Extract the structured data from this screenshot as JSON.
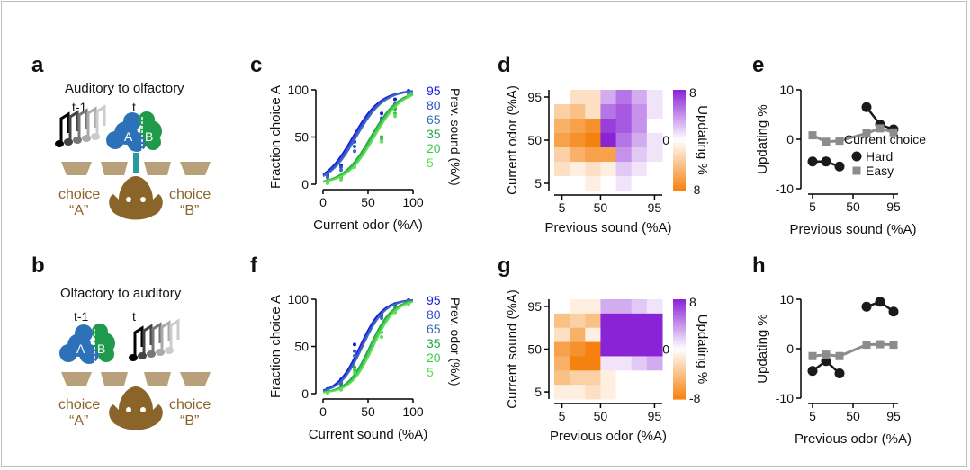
{
  "panel_labels": [
    "a",
    "b",
    "c",
    "d",
    "e",
    "f",
    "g",
    "h"
  ],
  "schematic_a": {
    "title": "Auditory to olfactory",
    "t_prev": "t-1",
    "t_curr": "t",
    "odor_a": "A",
    "odor_b": "B",
    "choice_left": "choice",
    "quote_left": "“A”",
    "choice_right": "choice",
    "quote_right": "“B”"
  },
  "schematic_b": {
    "title": "Olfactory to auditory",
    "t_prev": "t-1",
    "t_curr": "t",
    "odor_a": "A",
    "odor_b": "B",
    "choice_left": "choice",
    "quote_left": "“A”",
    "choice_right": "choice",
    "quote_right": "“B”"
  },
  "colors": {
    "blue_dark": "#1a1adb",
    "blue_mid": "#2f4fd0",
    "blue_light": "#3a6db8",
    "green_dark": "#25a64a",
    "green_mid": "#3cc84a",
    "green_light": "#5fe050",
    "odor_blue": "#2d72b8",
    "odor_green": "#1f9a4b",
    "brown": "#8a6429",
    "tan": "#b8a07a",
    "orange": "#f5820f",
    "purple": "#8a22d6",
    "hard": "#1a1a1a",
    "easy": "#8c8c8c"
  },
  "chart_data": [
    {
      "panel": "c",
      "type": "line",
      "xlabel": "Current odor (%A)",
      "ylabel": "Fraction choice A",
      "xlim": [
        0,
        100
      ],
      "ylim": [
        0,
        100
      ],
      "xticks": [
        "0",
        "50",
        "100"
      ],
      "yticks": [
        "0",
        "50",
        "100"
      ],
      "legend_title": "Prev. sound (%A)",
      "legend_labels": [
        "95",
        "80",
        "65",
        "35",
        "20",
        "5"
      ],
      "series": [
        {
          "name": "95",
          "mid": 33,
          "slope": 0.065
        },
        {
          "name": "80",
          "mid": 35,
          "slope": 0.065
        },
        {
          "name": "65",
          "mid": 37,
          "slope": 0.065
        },
        {
          "name": "35",
          "mid": 53,
          "slope": 0.065
        },
        {
          "name": "20",
          "mid": 55,
          "slope": 0.065
        },
        {
          "name": "5",
          "mid": 57,
          "slope": 0.065
        }
      ],
      "x": [
        5,
        20,
        35,
        65,
        80,
        95
      ],
      "points": [
        [
          10,
          20,
          45,
          75,
          90,
          99
        ],
        [
          8,
          18,
          40,
          70,
          85,
          98
        ],
        [
          7,
          15,
          35,
          68,
          84,
          97
        ],
        [
          3,
          8,
          22,
          50,
          80,
          95
        ],
        [
          2,
          7,
          20,
          48,
          75,
          94
        ],
        [
          1,
          5,
          18,
          45,
          72,
          93
        ]
      ]
    },
    {
      "panel": "d",
      "type": "heatmap",
      "xlabel": "Previous sound (%A)",
      "ylabel": "Current odor (%A)",
      "xticks": [
        "5",
        "50",
        "95"
      ],
      "yticks": [
        "95",
        "50",
        "5"
      ],
      "colorbar_label": "Updating %",
      "colorbar_ticks": [
        "8",
        "0",
        "-8"
      ],
      "values": [
        [
          0,
          -2,
          -2,
          3,
          5,
          3,
          1
        ],
        [
          -3,
          -4,
          -2,
          5,
          6,
          4,
          1
        ],
        [
          -5,
          -6,
          -7,
          7,
          6,
          4,
          0
        ],
        [
          -6,
          -7,
          -8,
          8,
          5,
          3,
          1
        ],
        [
          -3,
          -5,
          -6,
          -6,
          4,
          2,
          1
        ],
        [
          -2,
          -1,
          -2,
          -1,
          2,
          1,
          0
        ],
        [
          0,
          0,
          -1,
          0,
          1,
          0,
          0
        ]
      ]
    },
    {
      "panel": "e",
      "type": "line",
      "xlabel": "Previous sound (%A)",
      "ylabel": "Updating %",
      "xlim": [
        0,
        100
      ],
      "ylim": [
        -10,
        10
      ],
      "xticks": [
        "5",
        "50",
        "95"
      ],
      "yticks": [
        "10",
        "0",
        "-10"
      ],
      "legend_title": "Current choice",
      "legend_labels": [
        "Hard",
        "Easy"
      ],
      "series": [
        {
          "name": "Hard",
          "groups": [
            {
              "x": [
                5,
                20,
                35
              ],
              "y": [
                -4.5,
                -4.5,
                -5.5
              ]
            },
            {
              "x": [
                65,
                80,
                95
              ],
              "y": [
                6.5,
                3,
                2
              ]
            }
          ]
        },
        {
          "name": "Easy",
          "groups": [
            {
              "x": [
                5,
                20,
                35,
                65,
                80,
                95
              ],
              "y": [
                0.8,
                -0.5,
                -0.3,
                1.2,
                2.2,
                1.4
              ]
            }
          ]
        }
      ]
    },
    {
      "panel": "f",
      "type": "line",
      "xlabel": "Current sound (%A)",
      "ylabel": "Fraction choice A",
      "xlim": [
        0,
        100
      ],
      "ylim": [
        0,
        100
      ],
      "xticks": [
        "0",
        "50",
        "100"
      ],
      "yticks": [
        "0",
        "50",
        "100"
      ],
      "legend_title": "Prev. odor (%A)",
      "legend_labels": [
        "95",
        "80",
        "65",
        "35",
        "20",
        "5"
      ],
      "series": [
        {
          "name": "95",
          "mid": 41,
          "slope": 0.08
        },
        {
          "name": "80",
          "mid": 43,
          "slope": 0.08
        },
        {
          "name": "65",
          "mid": 44,
          "slope": 0.08
        },
        {
          "name": "35",
          "mid": 52,
          "slope": 0.08
        },
        {
          "name": "20",
          "mid": 54,
          "slope": 0.08
        },
        {
          "name": "5",
          "mid": 56,
          "slope": 0.08
        }
      ],
      "x": [
        5,
        20,
        35,
        65,
        80,
        95
      ],
      "points": [
        [
          5,
          15,
          52,
          85,
          95,
          99
        ],
        [
          4,
          12,
          45,
          82,
          94,
          98
        ],
        [
          3,
          10,
          40,
          80,
          93,
          98
        ],
        [
          2,
          6,
          28,
          70,
          90,
          97
        ],
        [
          1,
          5,
          25,
          65,
          88,
          96
        ],
        [
          1,
          4,
          22,
          60,
          86,
          95
        ]
      ]
    },
    {
      "panel": "g",
      "type": "heatmap",
      "xlabel": "Previous odor (%A)",
      "ylabel": "Current sound (%A)",
      "xticks": [
        "5",
        "50",
        "95"
      ],
      "yticks": [
        "95",
        "50",
        "5"
      ],
      "colorbar_label": "Updating %",
      "colorbar_ticks": [
        "8",
        "0",
        "-8"
      ],
      "values": [
        [
          0,
          -1,
          -1,
          3,
          3,
          2,
          1
        ],
        [
          -4,
          -3,
          -4,
          8,
          8,
          8,
          8
        ],
        [
          -2,
          -5,
          -1,
          8,
          8,
          8,
          8
        ],
        [
          -6,
          -7,
          -8,
          8,
          8,
          8,
          8
        ],
        [
          -5,
          -8,
          -8,
          1,
          1,
          2,
          3
        ],
        [
          -4,
          -3,
          -3,
          -1,
          0,
          0,
          0
        ],
        [
          -1,
          -1,
          -2,
          -1,
          0,
          0,
          0
        ]
      ]
    },
    {
      "panel": "h",
      "type": "line",
      "xlabel": "Previous odor (%A)",
      "ylabel": "Updating %",
      "xlim": [
        0,
        100
      ],
      "ylim": [
        -10,
        10
      ],
      "xticks": [
        "5",
        "50",
        "95"
      ],
      "yticks": [
        "10",
        "0",
        "-10"
      ],
      "series": [
        {
          "name": "Hard",
          "groups": [
            {
              "x": [
                5,
                20,
                35
              ],
              "y": [
                -4.5,
                -2.5,
                -5
              ]
            },
            {
              "x": [
                65,
                80,
                95
              ],
              "y": [
                8.5,
                9.5,
                7.5
              ]
            }
          ]
        },
        {
          "name": "Easy",
          "groups": [
            {
              "x": [
                5,
                20,
                35,
                65,
                80,
                95
              ],
              "y": [
                -1.5,
                -1.2,
                -1.5,
                0.8,
                0.9,
                0.8
              ]
            }
          ]
        }
      ]
    }
  ]
}
